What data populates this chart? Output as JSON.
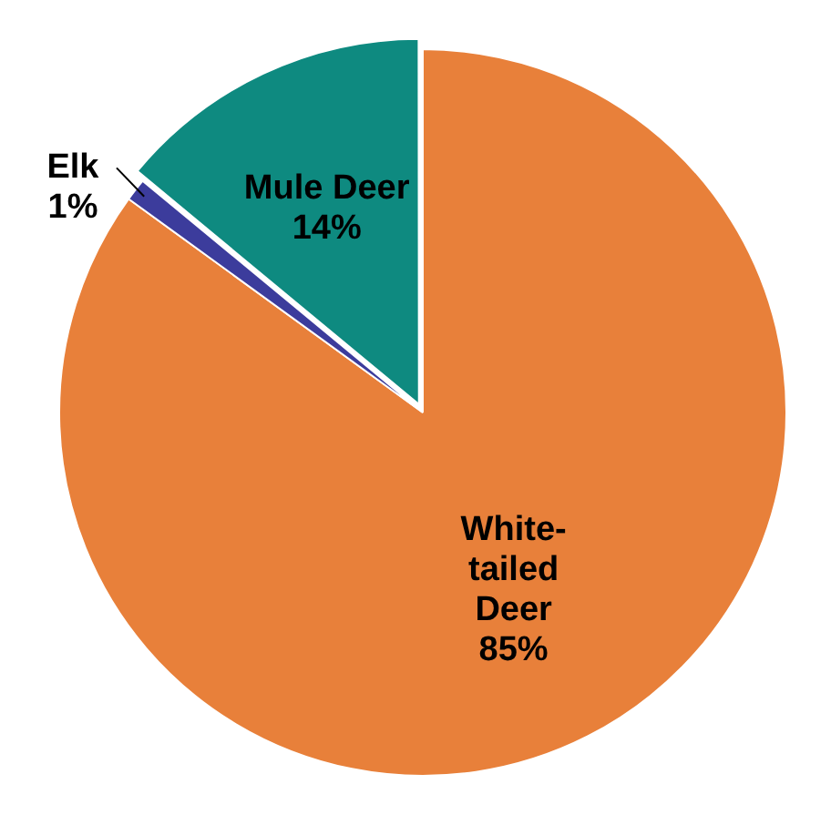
{
  "chart_data": {
    "type": "pie",
    "categories": [
      "White-tailed Deer",
      "Elk",
      "Mule Deer"
    ],
    "values": [
      85,
      1,
      14
    ],
    "colors": [
      "#e8803a",
      "#3c3c9c",
      "#0e8a80"
    ],
    "value_labels": [
      "85%",
      "1%",
      "14%"
    ],
    "legend": false
  }
}
